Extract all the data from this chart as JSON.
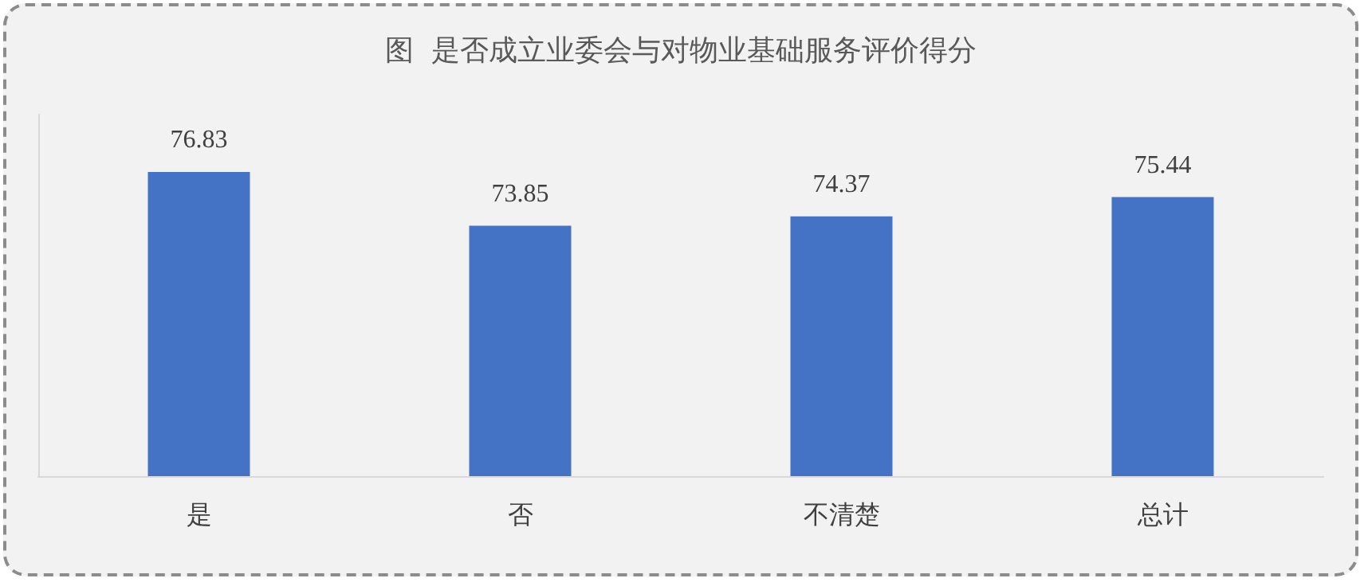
{
  "chart_data": {
    "type": "bar",
    "title": "图  是否成立业委会与对物业基础服务评价得分",
    "categories": [
      "是",
      "否",
      "不清楚",
      "总计"
    ],
    "values": [
      76.83,
      73.85,
      74.37,
      75.44
    ],
    "color": "#4472c4",
    "ylim": [
      60,
      80
    ],
    "tick_labels": "x",
    "data_labels": true
  }
}
